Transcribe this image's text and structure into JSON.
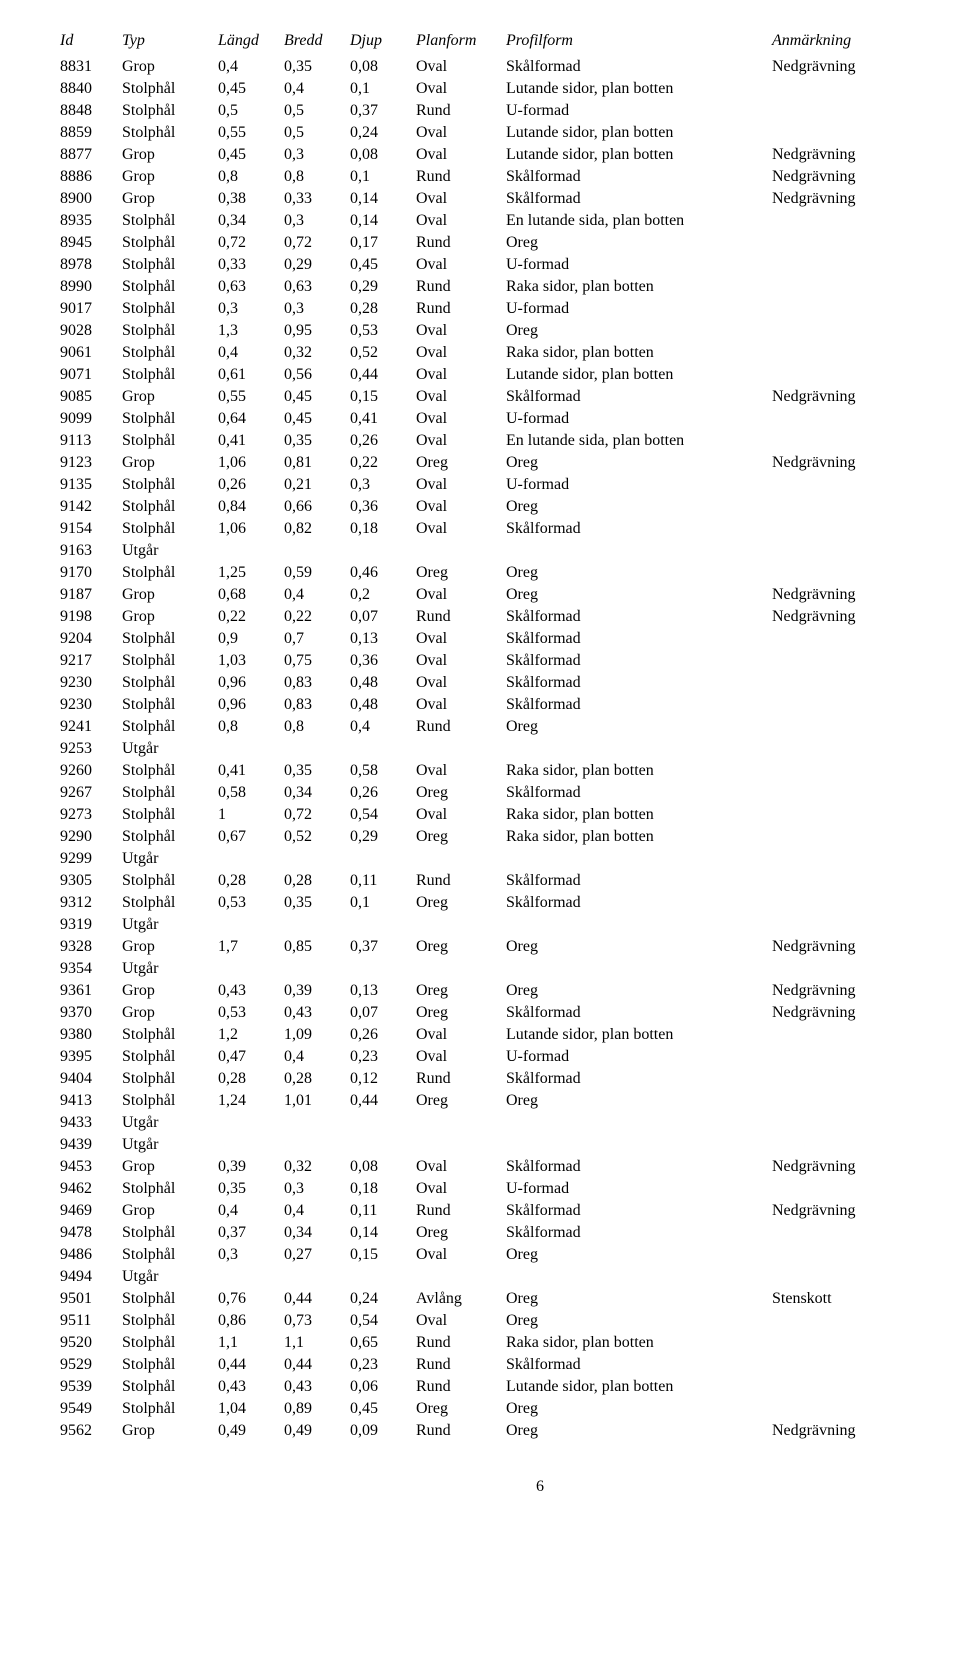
{
  "columns": [
    {
      "key": "id",
      "label": "Id",
      "class": "col-id"
    },
    {
      "key": "typ",
      "label": "Typ",
      "class": "col-typ"
    },
    {
      "key": "langd",
      "label": "Längd",
      "class": "col-langd"
    },
    {
      "key": "bredd",
      "label": "Bredd",
      "class": "col-bredd"
    },
    {
      "key": "djup",
      "label": "Djup",
      "class": "col-djup"
    },
    {
      "key": "plan",
      "label": "Planform",
      "class": "col-plan"
    },
    {
      "key": "profil",
      "label": "Profilform",
      "class": "col-profil"
    },
    {
      "key": "anm",
      "label": "Anmärkning",
      "class": "col-anm"
    }
  ],
  "rows": [
    {
      "id": "8831",
      "typ": "Grop",
      "langd": "0,4",
      "bredd": "0,35",
      "djup": "0,08",
      "plan": "Oval",
      "profil": "Skålformad",
      "anm": "Nedgrävning"
    },
    {
      "id": "8840",
      "typ": "Stolphål",
      "langd": "0,45",
      "bredd": "0,4",
      "djup": "0,1",
      "plan": "Oval",
      "profil": "Lutande sidor, plan botten",
      "anm": ""
    },
    {
      "id": "8848",
      "typ": "Stolphål",
      "langd": "0,5",
      "bredd": "0,5",
      "djup": "0,37",
      "plan": "Rund",
      "profil": "U-formad",
      "anm": ""
    },
    {
      "id": "8859",
      "typ": "Stolphål",
      "langd": "0,55",
      "bredd": "0,5",
      "djup": "0,24",
      "plan": "Oval",
      "profil": "Lutande sidor, plan botten",
      "anm": ""
    },
    {
      "id": "8877",
      "typ": "Grop",
      "langd": "0,45",
      "bredd": "0,3",
      "djup": "0,08",
      "plan": "Oval",
      "profil": "Lutande sidor, plan botten",
      "anm": "Nedgrävning"
    },
    {
      "id": "8886",
      "typ": "Grop",
      "langd": "0,8",
      "bredd": "0,8",
      "djup": "0,1",
      "plan": "Rund",
      "profil": "Skålformad",
      "anm": "Nedgrävning"
    },
    {
      "id": "8900",
      "typ": "Grop",
      "langd": "0,38",
      "bredd": "0,33",
      "djup": "0,14",
      "plan": "Oval",
      "profil": "Skålformad",
      "anm": "Nedgrävning"
    },
    {
      "id": "8935",
      "typ": "Stolphål",
      "langd": "0,34",
      "bredd": "0,3",
      "djup": "0,14",
      "plan": "Oval",
      "profil": "En lutande sida, plan botten",
      "anm": ""
    },
    {
      "id": "8945",
      "typ": "Stolphål",
      "langd": "0,72",
      "bredd": "0,72",
      "djup": "0,17",
      "plan": "Rund",
      "profil": "Oreg",
      "anm": ""
    },
    {
      "id": "8978",
      "typ": "Stolphål",
      "langd": "0,33",
      "bredd": "0,29",
      "djup": "0,45",
      "plan": "Oval",
      "profil": "U-formad",
      "anm": ""
    },
    {
      "id": "8990",
      "typ": "Stolphål",
      "langd": "0,63",
      "bredd": "0,63",
      "djup": "0,29",
      "plan": "Rund",
      "profil": "Raka sidor, plan botten",
      "anm": ""
    },
    {
      "id": "9017",
      "typ": "Stolphål",
      "langd": "0,3",
      "bredd": "0,3",
      "djup": "0,28",
      "plan": "Rund",
      "profil": "U-formad",
      "anm": ""
    },
    {
      "id": "9028",
      "typ": "Stolphål",
      "langd": "1,3",
      "bredd": "0,95",
      "djup": "0,53",
      "plan": "Oval",
      "profil": "Oreg",
      "anm": ""
    },
    {
      "id": "9061",
      "typ": "Stolphål",
      "langd": "0,4",
      "bredd": "0,32",
      "djup": "0,52",
      "plan": "Oval",
      "profil": "Raka sidor, plan botten",
      "anm": ""
    },
    {
      "id": "9071",
      "typ": "Stolphål",
      "langd": "0,61",
      "bredd": "0,56",
      "djup": "0,44",
      "plan": "Oval",
      "profil": "Lutande sidor, plan botten",
      "anm": ""
    },
    {
      "id": "9085",
      "typ": "Grop",
      "langd": "0,55",
      "bredd": "0,45",
      "djup": "0,15",
      "plan": "Oval",
      "profil": "Skålformad",
      "anm": "Nedgrävning"
    },
    {
      "id": "9099",
      "typ": "Stolphål",
      "langd": "0,64",
      "bredd": "0,45",
      "djup": "0,41",
      "plan": "Oval",
      "profil": "U-formad",
      "anm": ""
    },
    {
      "id": "9113",
      "typ": "Stolphål",
      "langd": "0,41",
      "bredd": "0,35",
      "djup": "0,26",
      "plan": "Oval",
      "profil": "En lutande sida, plan botten",
      "anm": ""
    },
    {
      "id": "9123",
      "typ": "Grop",
      "langd": "1,06",
      "bredd": "0,81",
      "djup": "0,22",
      "plan": "Oreg",
      "profil": "Oreg",
      "anm": "Nedgrävning"
    },
    {
      "id": "9135",
      "typ": "Stolphål",
      "langd": "0,26",
      "bredd": "0,21",
      "djup": "0,3",
      "plan": "Oval",
      "profil": "U-formad",
      "anm": ""
    },
    {
      "id": "9142",
      "typ": "Stolphål",
      "langd": "0,84",
      "bredd": "0,66",
      "djup": "0,36",
      "plan": "Oval",
      "profil": "Oreg",
      "anm": ""
    },
    {
      "id": "9154",
      "typ": "Stolphål",
      "langd": "1,06",
      "bredd": "0,82",
      "djup": "0,18",
      "plan": "Oval",
      "profil": "Skålformad",
      "anm": ""
    },
    {
      "id": "9163",
      "typ": "Utgår",
      "langd": "",
      "bredd": "",
      "djup": "",
      "plan": "",
      "profil": "",
      "anm": ""
    },
    {
      "id": "9170",
      "typ": "Stolphål",
      "langd": "1,25",
      "bredd": "0,59",
      "djup": "0,46",
      "plan": "Oreg",
      "profil": "Oreg",
      "anm": ""
    },
    {
      "id": "9187",
      "typ": "Grop",
      "langd": "0,68",
      "bredd": "0,4",
      "djup": "0,2",
      "plan": "Oval",
      "profil": "Oreg",
      "anm": "Nedgrävning"
    },
    {
      "id": "9198",
      "typ": "Grop",
      "langd": "0,22",
      "bredd": "0,22",
      "djup": "0,07",
      "plan": "Rund",
      "profil": "Skålformad",
      "anm": "Nedgrävning"
    },
    {
      "id": "9204",
      "typ": "Stolphål",
      "langd": "0,9",
      "bredd": "0,7",
      "djup": "0,13",
      "plan": "Oval",
      "profil": "Skålformad",
      "anm": ""
    },
    {
      "id": "9217",
      "typ": "Stolphål",
      "langd": "1,03",
      "bredd": "0,75",
      "djup": "0,36",
      "plan": "Oval",
      "profil": "Skålformad",
      "anm": ""
    },
    {
      "id": "9230",
      "typ": "Stolphål",
      "langd": "0,96",
      "bredd": "0,83",
      "djup": "0,48",
      "plan": "Oval",
      "profil": "Skålformad",
      "anm": ""
    },
    {
      "id": "9230",
      "typ": "Stolphål",
      "langd": "0,96",
      "bredd": "0,83",
      "djup": "0,48",
      "plan": "Oval",
      "profil": "Skålformad",
      "anm": ""
    },
    {
      "id": "9241",
      "typ": "Stolphål",
      "langd": "0,8",
      "bredd": "0,8",
      "djup": "0,4",
      "plan": "Rund",
      "profil": "Oreg",
      "anm": ""
    },
    {
      "id": "9253",
      "typ": "Utgår",
      "langd": "",
      "bredd": "",
      "djup": "",
      "plan": "",
      "profil": "",
      "anm": ""
    },
    {
      "id": "9260",
      "typ": "Stolphål",
      "langd": "0,41",
      "bredd": "0,35",
      "djup": "0,58",
      "plan": "Oval",
      "profil": "Raka sidor, plan botten",
      "anm": ""
    },
    {
      "id": "9267",
      "typ": "Stolphål",
      "langd": "0,58",
      "bredd": "0,34",
      "djup": "0,26",
      "plan": "Oreg",
      "profil": "Skålformad",
      "anm": ""
    },
    {
      "id": "9273",
      "typ": "Stolphål",
      "langd": "1",
      "bredd": "0,72",
      "djup": "0,54",
      "plan": "Oval",
      "profil": "Raka sidor, plan botten",
      "anm": ""
    },
    {
      "id": "9290",
      "typ": "Stolphål",
      "langd": "0,67",
      "bredd": "0,52",
      "djup": "0,29",
      "plan": "Oreg",
      "profil": "Raka sidor, plan botten",
      "anm": ""
    },
    {
      "id": "9299",
      "typ": "Utgår",
      "langd": "",
      "bredd": "",
      "djup": "",
      "plan": "",
      "profil": "",
      "anm": ""
    },
    {
      "id": "9305",
      "typ": "Stolphål",
      "langd": "0,28",
      "bredd": "0,28",
      "djup": "0,11",
      "plan": "Rund",
      "profil": "Skålformad",
      "anm": ""
    },
    {
      "id": "9312",
      "typ": "Stolphål",
      "langd": "0,53",
      "bredd": "0,35",
      "djup": "0,1",
      "plan": "Oreg",
      "profil": "Skålformad",
      "anm": ""
    },
    {
      "id": "9319",
      "typ": "Utgår",
      "langd": "",
      "bredd": "",
      "djup": "",
      "plan": "",
      "profil": "",
      "anm": ""
    },
    {
      "id": "9328",
      "typ": "Grop",
      "langd": "1,7",
      "bredd": "0,85",
      "djup": "0,37",
      "plan": "Oreg",
      "profil": "Oreg",
      "anm": "Nedgrävning"
    },
    {
      "id": "9354",
      "typ": "Utgår",
      "langd": "",
      "bredd": "",
      "djup": "",
      "plan": "",
      "profil": "",
      "anm": ""
    },
    {
      "id": "9361",
      "typ": "Grop",
      "langd": "0,43",
      "bredd": "0,39",
      "djup": "0,13",
      "plan": "Oreg",
      "profil": "Oreg",
      "anm": "Nedgrävning"
    },
    {
      "id": "9370",
      "typ": "Grop",
      "langd": "0,53",
      "bredd": "0,43",
      "djup": "0,07",
      "plan": "Oreg",
      "profil": "Skålformad",
      "anm": "Nedgrävning"
    },
    {
      "id": "9380",
      "typ": "Stolphål",
      "langd": "1,2",
      "bredd": "1,09",
      "djup": "0,26",
      "plan": "Oval",
      "profil": "Lutande sidor, plan botten",
      "anm": ""
    },
    {
      "id": "9395",
      "typ": "Stolphål",
      "langd": "0,47",
      "bredd": "0,4",
      "djup": "0,23",
      "plan": "Oval",
      "profil": "U-formad",
      "anm": ""
    },
    {
      "id": "9404",
      "typ": "Stolphål",
      "langd": "0,28",
      "bredd": "0,28",
      "djup": "0,12",
      "plan": "Rund",
      "profil": "Skålformad",
      "anm": ""
    },
    {
      "id": "9413",
      "typ": "Stolphål",
      "langd": "1,24",
      "bredd": "1,01",
      "djup": "0,44",
      "plan": "Oreg",
      "profil": "Oreg",
      "anm": ""
    },
    {
      "id": "9433",
      "typ": "Utgår",
      "langd": "",
      "bredd": "",
      "djup": "",
      "plan": "",
      "profil": "",
      "anm": ""
    },
    {
      "id": "9439",
      "typ": "Utgår",
      "langd": "",
      "bredd": "",
      "djup": "",
      "plan": "",
      "profil": "",
      "anm": ""
    },
    {
      "id": "9453",
      "typ": "Grop",
      "langd": "0,39",
      "bredd": "0,32",
      "djup": "0,08",
      "plan": "Oval",
      "profil": "Skålformad",
      "anm": "Nedgrävning"
    },
    {
      "id": "9462",
      "typ": "Stolphål",
      "langd": "0,35",
      "bredd": "0,3",
      "djup": "0,18",
      "plan": "Oval",
      "profil": "U-formad",
      "anm": ""
    },
    {
      "id": "9469",
      "typ": "Grop",
      "langd": "0,4",
      "bredd": "0,4",
      "djup": "0,11",
      "plan": "Rund",
      "profil": "Skålformad",
      "anm": "Nedgrävning"
    },
    {
      "id": "9478",
      "typ": "Stolphål",
      "langd": "0,37",
      "bredd": "0,34",
      "djup": "0,14",
      "plan": "Oreg",
      "profil": "Skålformad",
      "anm": ""
    },
    {
      "id": "9486",
      "typ": "Stolphål",
      "langd": "0,3",
      "bredd": "0,27",
      "djup": "0,15",
      "plan": "Oval",
      "profil": "Oreg",
      "anm": ""
    },
    {
      "id": "9494",
      "typ": "Utgår",
      "langd": "",
      "bredd": "",
      "djup": "",
      "plan": "",
      "profil": "",
      "anm": ""
    },
    {
      "id": "9501",
      "typ": "Stolphål",
      "langd": "0,76",
      "bredd": "0,44",
      "djup": "0,24",
      "plan": "Avlång",
      "profil": "Oreg",
      "anm": "Stenskott"
    },
    {
      "id": "9511",
      "typ": "Stolphål",
      "langd": "0,86",
      "bredd": "0,73",
      "djup": "0,54",
      "plan": "Oval",
      "profil": "Oreg",
      "anm": ""
    },
    {
      "id": "9520",
      "typ": "Stolphål",
      "langd": "1,1",
      "bredd": "1,1",
      "djup": "0,65",
      "plan": "Rund",
      "profil": "Raka sidor, plan botten",
      "anm": ""
    },
    {
      "id": "9529",
      "typ": "Stolphål",
      "langd": "0,44",
      "bredd": "0,44",
      "djup": "0,23",
      "plan": "Rund",
      "profil": "Skålformad",
      "anm": ""
    },
    {
      "id": "9539",
      "typ": "Stolphål",
      "langd": "0,43",
      "bredd": "0,43",
      "djup": "0,06",
      "plan": "Rund",
      "profil": "Lutande sidor, plan botten",
      "anm": ""
    },
    {
      "id": "9549",
      "typ": "Stolphål",
      "langd": "1,04",
      "bredd": "0,89",
      "djup": "0,45",
      "plan": "Oreg",
      "profil": "Oreg",
      "anm": ""
    },
    {
      "id": "9562",
      "typ": "Grop",
      "langd": "0,49",
      "bredd": "0,49",
      "djup": "0,09",
      "plan": "Rund",
      "profil": "Oreg",
      "anm": "Nedgrävning"
    }
  ],
  "page_number": "6"
}
